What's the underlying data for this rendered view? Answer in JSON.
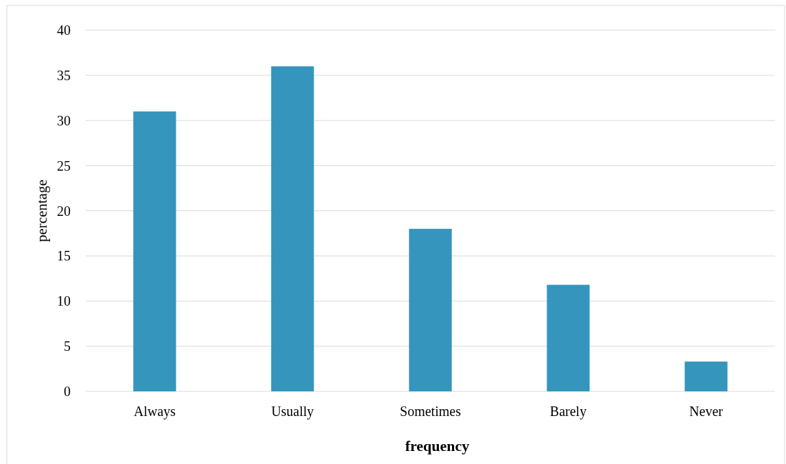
{
  "chart_data": {
    "type": "bar",
    "xlabel": "frequency",
    "ylabel": "percentage",
    "categories": [
      "Always",
      "Usually",
      "Sometimes",
      "Barely",
      "Never"
    ],
    "values": [
      31,
      36,
      18,
      11.8,
      3.3
    ],
    "color": "#3595bd",
    "ylim": [
      0,
      40
    ],
    "yticks": [
      0,
      5,
      10,
      15,
      20,
      25,
      30,
      35,
      40
    ],
    "grid": "y"
  }
}
